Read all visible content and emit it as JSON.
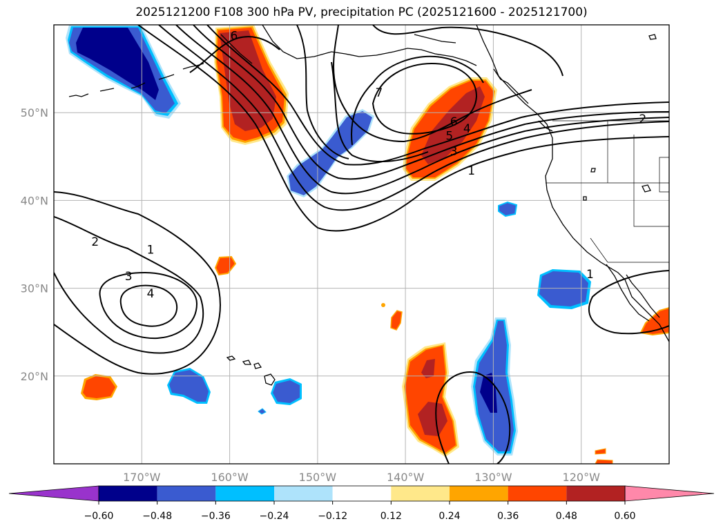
{
  "title": "2025121200 F108 300 hPa PV, precipitation PC (2025121600 - 2025121700)",
  "chart_data": {
    "type": "contour_map",
    "title": "2025121200 F108 300 hPa PV, precipitation PC (2025121600 - 2025121700)",
    "lon_range": [
      -180,
      -110
    ],
    "lat_range": [
      10,
      60
    ],
    "lon_ticks": [
      {
        "value": -170,
        "label": "170°W"
      },
      {
        "value": -160,
        "label": "160°W"
      },
      {
        "value": -150,
        "label": "150°W"
      },
      {
        "value": -140,
        "label": "140°W"
      },
      {
        "value": -130,
        "label": "130°W"
      },
      {
        "value": -120,
        "label": "120°W"
      }
    ],
    "lat_ticks": [
      {
        "value": 50,
        "label": "50°N"
      },
      {
        "value": 40,
        "label": "40°N"
      },
      {
        "value": 30,
        "label": "30°N"
      },
      {
        "value": 20,
        "label": "20°N"
      }
    ],
    "grid": true,
    "colorbar": {
      "levels": [
        "-0.60",
        "-0.48",
        "-0.36",
        "-0.24",
        "-0.12",
        "0.12",
        "0.24",
        "0.36",
        "0.48",
        "0.60"
      ],
      "colors": [
        "#9933cc",
        "#00008b",
        "#3a5bd0",
        "#00bfff",
        "#aee3fb",
        "#ffffff",
        "#ffe88a",
        "#ffa500",
        "#ff4500",
        "#b22222",
        "#ff88aa"
      ],
      "extend": "both"
    },
    "pv_contour_labels": [
      {
        "lon": -159.5,
        "lat": 58.8,
        "text": "6"
      },
      {
        "lon": -143,
        "lat": 52.3,
        "text": "7"
      },
      {
        "lon": -134.5,
        "lat": 49.0,
        "text": "6"
      },
      {
        "lon": -135.0,
        "lat": 47.4,
        "text": "5"
      },
      {
        "lon": -133.0,
        "lat": 48.2,
        "text": "4"
      },
      {
        "lon": -134.5,
        "lat": 45.6,
        "text": "3"
      },
      {
        "lon": -132.5,
        "lat": 43.4,
        "text": "1"
      },
      {
        "lon": -175.3,
        "lat": 35.3,
        "text": "2"
      },
      {
        "lon": -169.0,
        "lat": 34.4,
        "text": "1"
      },
      {
        "lon": -171.5,
        "lat": 31.4,
        "text": "3"
      },
      {
        "lon": -169.0,
        "lat": 29.4,
        "text": "4"
      },
      {
        "lon": -113.0,
        "lat": 49.3,
        "text": "2"
      },
      {
        "lon": -119.0,
        "lat": 31.6,
        "text": "1"
      }
    ],
    "precip_pc_regions": [
      {
        "sign": "negative",
        "center_lon": -170,
        "center_lat": 56,
        "max_level": "-0.60"
      },
      {
        "sign": "positive",
        "center_lon": -158.5,
        "center_lat": 54,
        "max_level": "0.48"
      },
      {
        "sign": "negative",
        "center_lon": -148,
        "center_lat": 44,
        "max_level": "-0.36"
      },
      {
        "sign": "positive",
        "center_lon": -134,
        "center_lat": 47,
        "max_level": "0.48"
      },
      {
        "sign": "negative",
        "center_lon": -130,
        "center_lat": 18,
        "max_level": "-0.60"
      },
      {
        "sign": "positive",
        "center_lon": -137,
        "center_lat": 18,
        "max_level": "0.48"
      },
      {
        "sign": "negative",
        "center_lon": -166,
        "center_lat": 19,
        "max_level": "-0.36"
      },
      {
        "sign": "negative",
        "center_lon": -153,
        "center_lat": 18,
        "max_level": "-0.36"
      },
      {
        "sign": "positive",
        "center_lon": -175,
        "center_lat": 19,
        "max_level": "0.48"
      },
      {
        "sign": "negative",
        "center_lon": -123,
        "center_lat": 31,
        "max_level": "-0.36"
      },
      {
        "sign": "positive",
        "center_lon": -111,
        "center_lat": 26,
        "max_level": "0.36"
      }
    ]
  }
}
